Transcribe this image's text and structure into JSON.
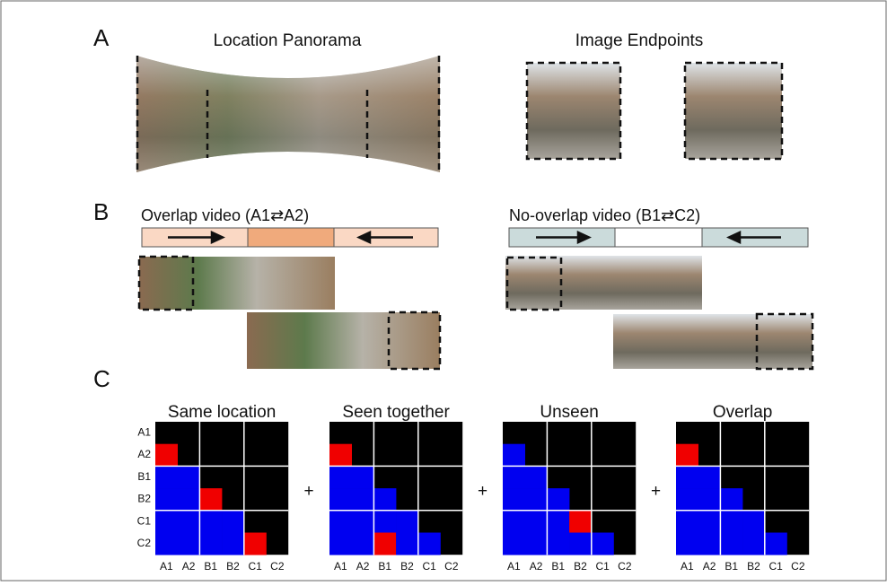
{
  "panel_a": {
    "label": "A",
    "panorama_title": "Location Panorama",
    "endpoints_title": "Image Endpoints"
  },
  "panel_b": {
    "label": "B",
    "overlap_title": "Overlap video (A1⇄A2)",
    "no_overlap_title": "No-overlap video (B1⇄C2)"
  },
  "panel_c": {
    "label": "C",
    "matrices": [
      {
        "title": "Same location"
      },
      {
        "title": "Seen together"
      },
      {
        "title": "Unseen"
      },
      {
        "title": "Overlap"
      }
    ],
    "row_labels": [
      "A1",
      "A2",
      "B1",
      "B2",
      "C1",
      "C2"
    ],
    "column_labels": [
      "A1",
      "A2",
      "B1",
      "B2",
      "C1",
      "C2"
    ],
    "operator": "+"
  }
}
